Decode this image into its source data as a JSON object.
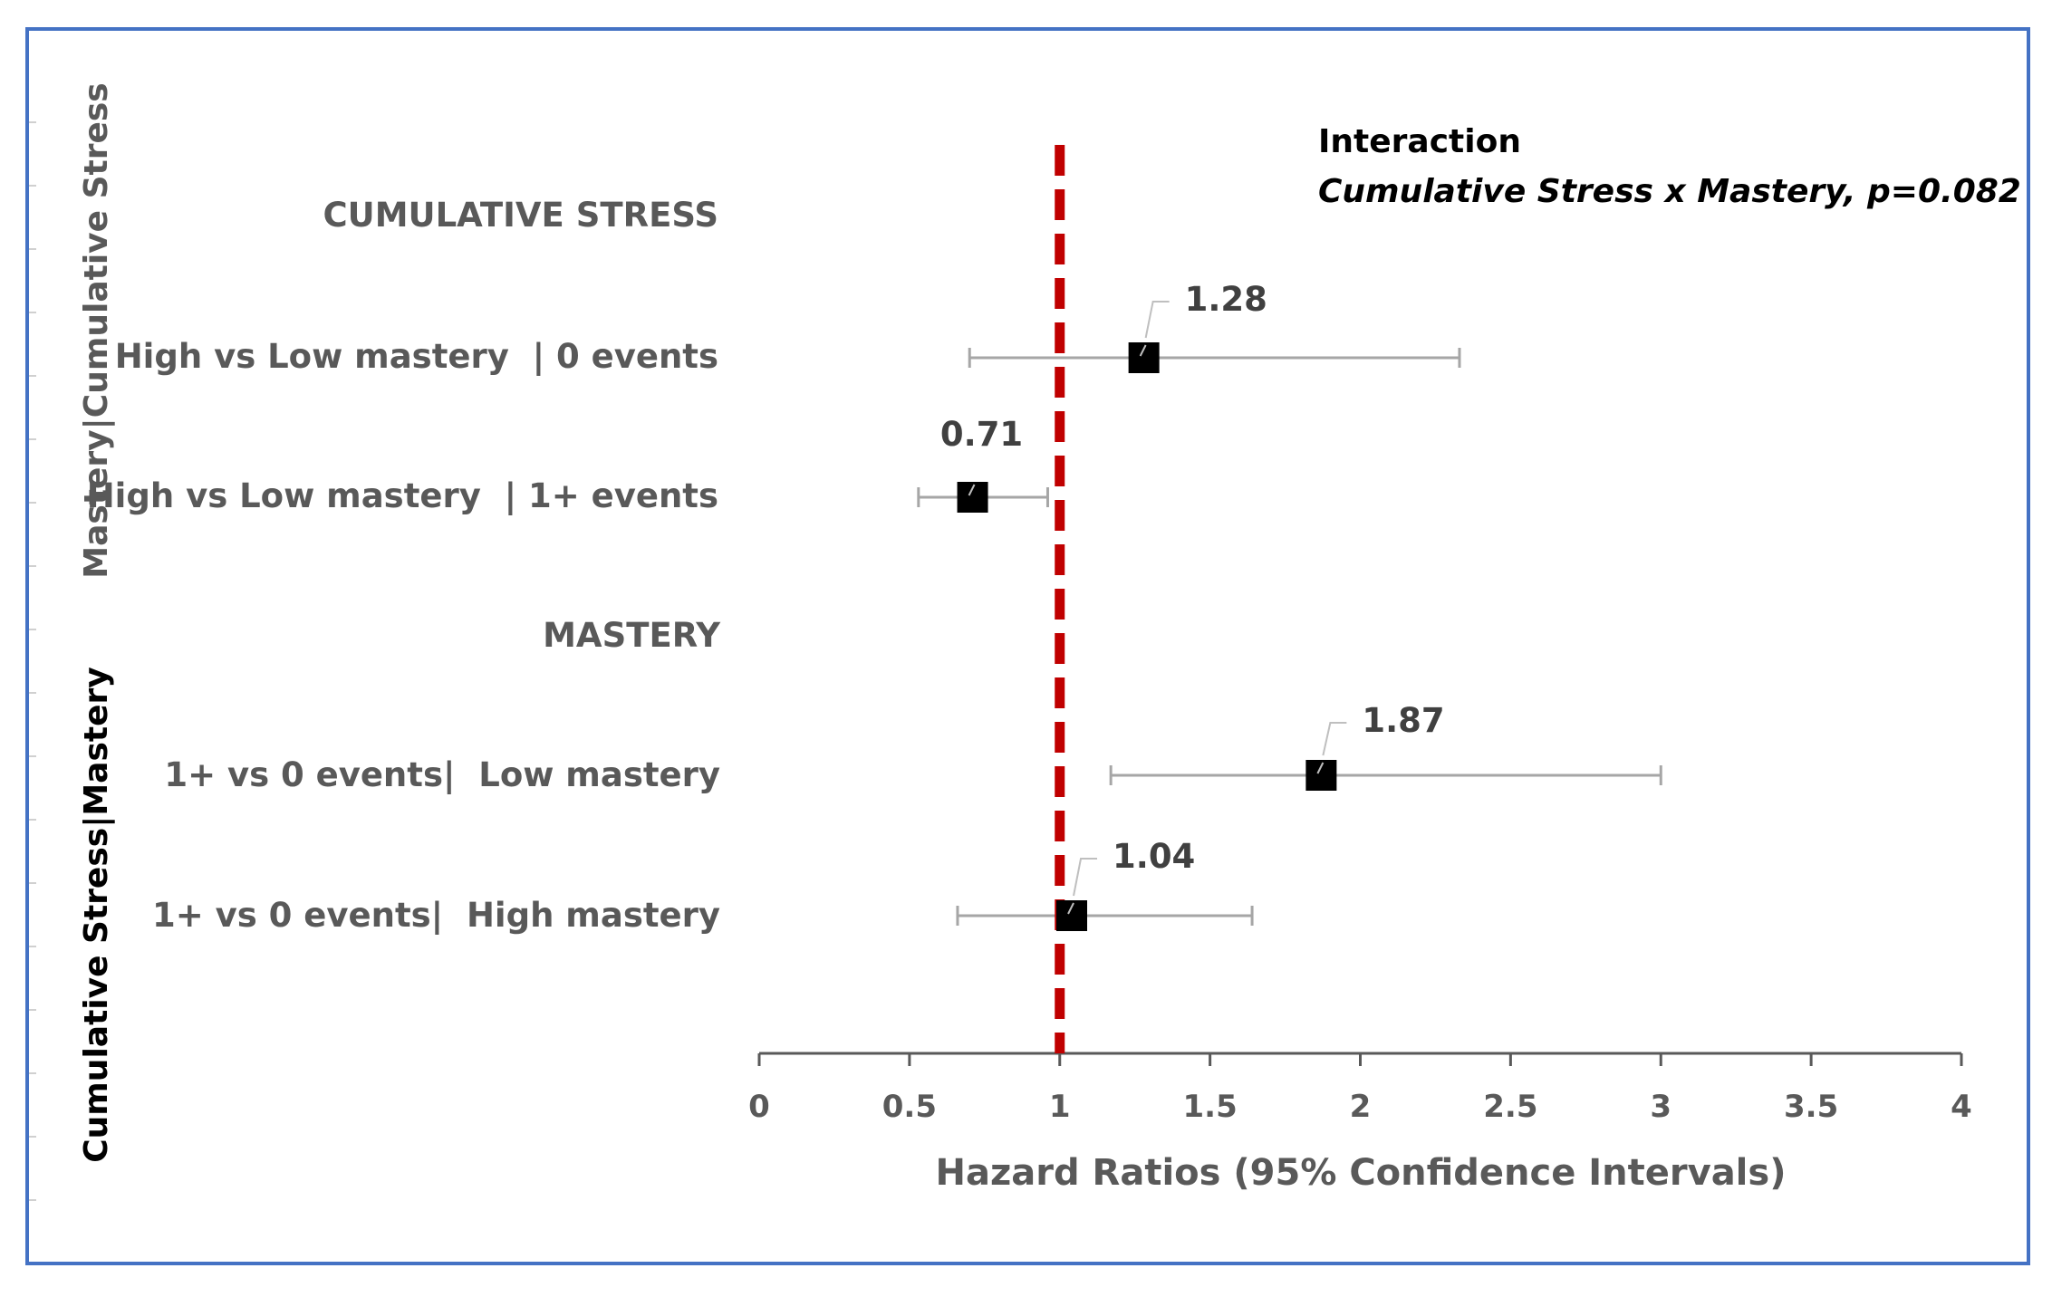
{
  "chart_data": {
    "type": "forest",
    "xlabel": "Hazard Ratios (95% Confidence Intervals)",
    "xlim": [
      0,
      4
    ],
    "xticks": [
      0,
      0.5,
      1,
      1.5,
      2,
      2.5,
      3,
      3.5,
      4
    ],
    "xtick_labels": [
      "0",
      "0.5",
      "1",
      "1.5",
      "2",
      "2.5",
      "3",
      "3.5",
      "4"
    ],
    "reference_line": 1,
    "reference_color": "#c00000",
    "marker_color": "#000000",
    "ci_color": "#a6a6a6",
    "annotation": {
      "title": "Interaction",
      "subtitle": "Cumulative Stress x Mastery, p=0.082"
    },
    "side_labels": [
      "Mastery|Cumulative Stress",
      "Cumulative Stress|Mastery"
    ],
    "groups": [
      {
        "heading": "CUMULATIVE STRESS",
        "rows": [
          {
            "label": "High vs Low mastery  | 0 events",
            "hr": 1.28,
            "hr_label": "1.28",
            "lower": 0.7,
            "upper": 2.33
          },
          {
            "label": "High vs Low mastery  | 1+ events",
            "hr": 0.71,
            "hr_label": "0.71",
            "lower": 0.53,
            "upper": 0.96
          }
        ]
      },
      {
        "heading": "MASTERY",
        "rows": [
          {
            "label": "1+ vs 0 events|  Low mastery",
            "hr": 1.87,
            "hr_label": "1.87",
            "lower": 1.17,
            "upper": 3.0
          },
          {
            "label": "1+ vs 0 events|  High mastery",
            "hr": 1.04,
            "hr_label": "1.04",
            "lower": 0.66,
            "upper": 1.64
          }
        ]
      }
    ]
  }
}
